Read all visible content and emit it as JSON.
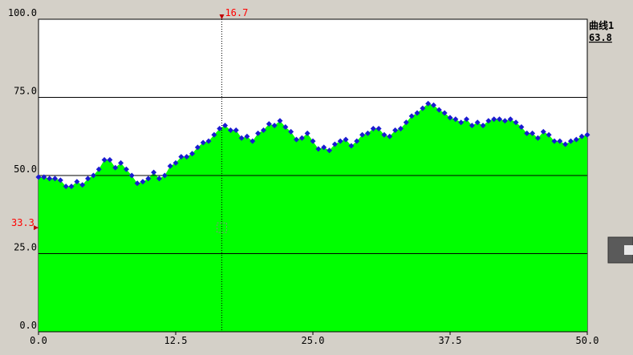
{
  "chart_data": {
    "type": "area",
    "series": [
      {
        "name": "曲线1",
        "color": "#00ff00",
        "marker_color": "#1a1ad0",
        "values": [
          49.5,
          49.5,
          49,
          49,
          48.5,
          46.5,
          46.5,
          48,
          47,
          49,
          50,
          52,
          55,
          55,
          52.5,
          54,
          52,
          50,
          47.5,
          48,
          49,
          51,
          49,
          50,
          53,
          54,
          56,
          56,
          57,
          59,
          60.5,
          61,
          63,
          65,
          66,
          64.5,
          64.5,
          62,
          62.5,
          61,
          63.5,
          64.5,
          66.5,
          66,
          67.5,
          65.5,
          64,
          61.5,
          62,
          63.5,
          61,
          58.5,
          59,
          58,
          60,
          61,
          61.5,
          59.5,
          61,
          63,
          63.5,
          65,
          65,
          63,
          62.5,
          64.5,
          65,
          67,
          69,
          70,
          71.5,
          73,
          72.5,
          71,
          70,
          68.5,
          68,
          67,
          68,
          66,
          67,
          66,
          67.5,
          68,
          68,
          67.5,
          68,
          67,
          65.5,
          63.5,
          63.5,
          62,
          64,
          63,
          61,
          61,
          60,
          61,
          61.5,
          62.5,
          63
        ]
      }
    ],
    "x": [
      0,
      0.5,
      1,
      1.5,
      2,
      2.5,
      3,
      3.5,
      4,
      4.5,
      5,
      5.5,
      6,
      6.5,
      7,
      7.5,
      8,
      8.5,
      9,
      9.5,
      10,
      10.5,
      11,
      11.5,
      12,
      12.5,
      13,
      13.5,
      14,
      14.5,
      15,
      15.5,
      16,
      16.5,
      17,
      17.5,
      18,
      18.5,
      19,
      19.5,
      20,
      20.5,
      21,
      21.5,
      22,
      22.5,
      23,
      23.5,
      24,
      24.5,
      25,
      25.5,
      26,
      26.5,
      27,
      27.5,
      28,
      28.5,
      29,
      29.5,
      30,
      30.5,
      31,
      31.5,
      32,
      32.5,
      33,
      33.5,
      34,
      34.5,
      35,
      35.5,
      36,
      36.5,
      37,
      37.5,
      38,
      38.5,
      39,
      39.5,
      40,
      40.5,
      41,
      41.5,
      42,
      42.5,
      43,
      43.5,
      44,
      44.5,
      45,
      45.5,
      46,
      46.5,
      47,
      47.5,
      48,
      48.5,
      49,
      49.5,
      50
    ],
    "xlim": [
      0,
      50
    ],
    "xticks": [
      {
        "value": 0,
        "label": "0.0"
      },
      12.5,
      {
        "value": 25,
        "label": "25.0"
      },
      37.5,
      {
        "value": 50,
        "label": "50.0"
      }
    ],
    "ylim": [
      0,
      100
    ],
    "yticks": [
      {
        "value": 0,
        "label": "0.0"
      },
      {
        "value": 25,
        "label": "25.0"
      },
      {
        "value": 50,
        "label": "50.0"
      },
      {
        "value": 75,
        "label": "75.0"
      },
      {
        "value": 100,
        "label": "100.0"
      }
    ],
    "grid": true,
    "cursor_x": 16.7,
    "cursor_y": 33.3,
    "legend_value": 63.8
  }
}
